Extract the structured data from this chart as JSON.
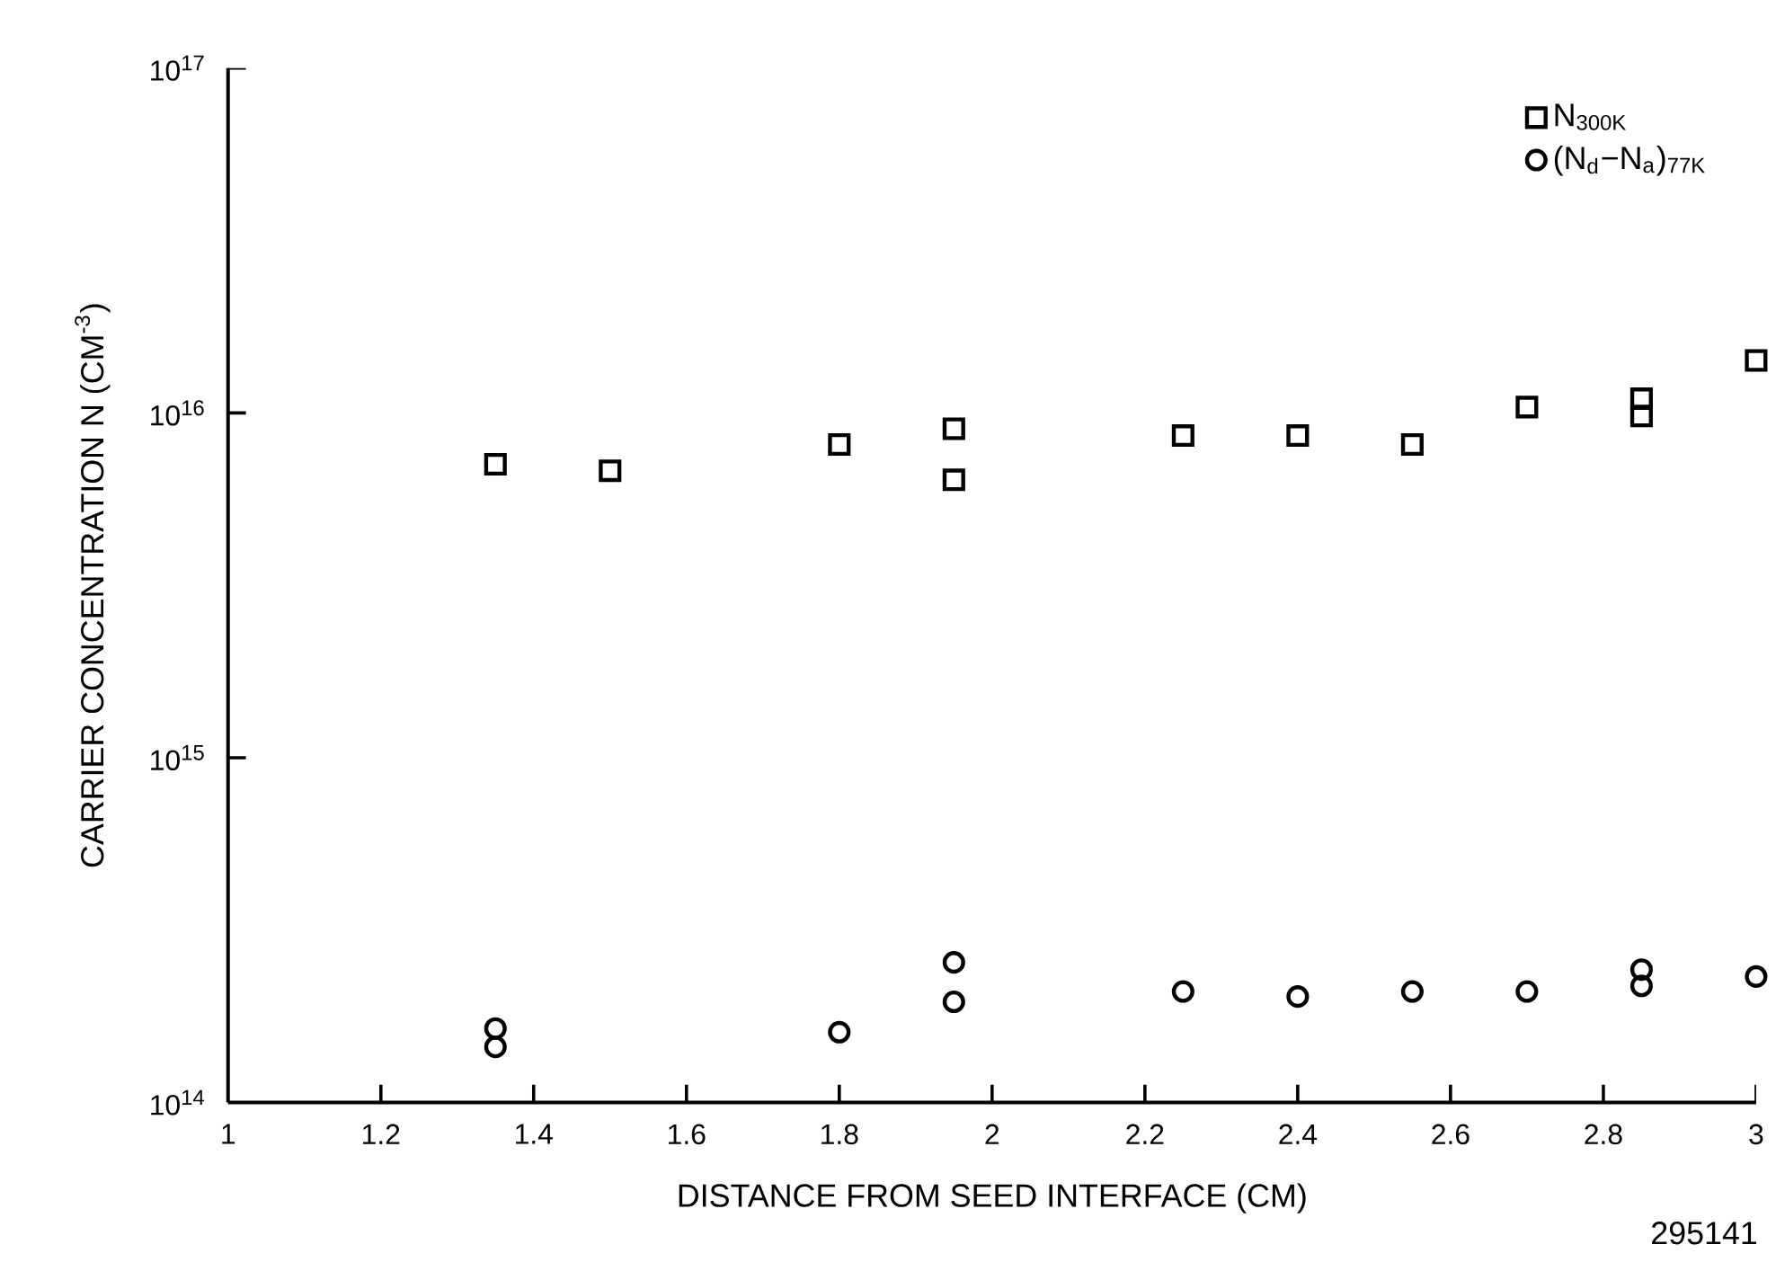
{
  "chart_data": {
    "type": "scatter",
    "xlabel": "DISTANCE FROM SEED INTERFACE (CM)",
    "ylabel": "CARRIER CONCENTRATION N (CM$^{-3}$)",
    "log": "y",
    "legend": "top right",
    "xlim": [
      1,
      3
    ],
    "xticks": [
      1,
      1.2,
      1.4,
      1.6,
      1.8,
      2,
      2.2,
      2.4,
      2.6,
      2.8,
      3
    ],
    "ylim": [
      100000000000000.0,
      1e+17
    ],
    "yticks": [
      {
        "value": 100000000000000.0,
        "label": "10$^{14}$"
      },
      {
        "value": 1000000000000000.0,
        "label": "10$^{15}$"
      },
      {
        "value": 1e+16,
        "label": "10$^{16}$"
      },
      {
        "value": 1e+17,
        "label": "10$^{17}$"
      }
    ],
    "series": [
      {
        "name": "N$_{300K}$",
        "color": "#000000",
        "marker": "square",
        "x": [
          1.35,
          1.5,
          1.8,
          1.95,
          1.95,
          2.25,
          2.4,
          2.55,
          2.7,
          2.85,
          2.85,
          3.0
        ],
        "values": [
          7100000000000000.0,
          6800000000000000.0,
          8100000000000000.0,
          6400000000000000.0,
          9000000000000000.0,
          8600000000000000.0,
          8600000000000000.0,
          8100000000000000.0,
          1.04e+16,
          1.1e+16,
          9800000000000000.0,
          1.42e+16
        ]
      },
      {
        "name": "(N$_{d}$−N$_{a}$)$_{77K}$",
        "color": "#000000",
        "marker": "circle",
        "x": [
          1.35,
          1.35,
          1.8,
          1.95,
          1.95,
          2.25,
          2.4,
          2.55,
          2.7,
          2.85,
          2.85,
          3.0
        ],
        "values": [
          164000000000000.0,
          145000000000000.0,
          160000000000000.0,
          255000000000000.0,
          196000000000000.0,
          210000000000000.0,
          203000000000000.0,
          210000000000000.0,
          210000000000000.0,
          243000000000000.0,
          218000000000000.0,
          232000000000000.0
        ]
      }
    ],
    "annotations": [
      "295141"
    ]
  }
}
